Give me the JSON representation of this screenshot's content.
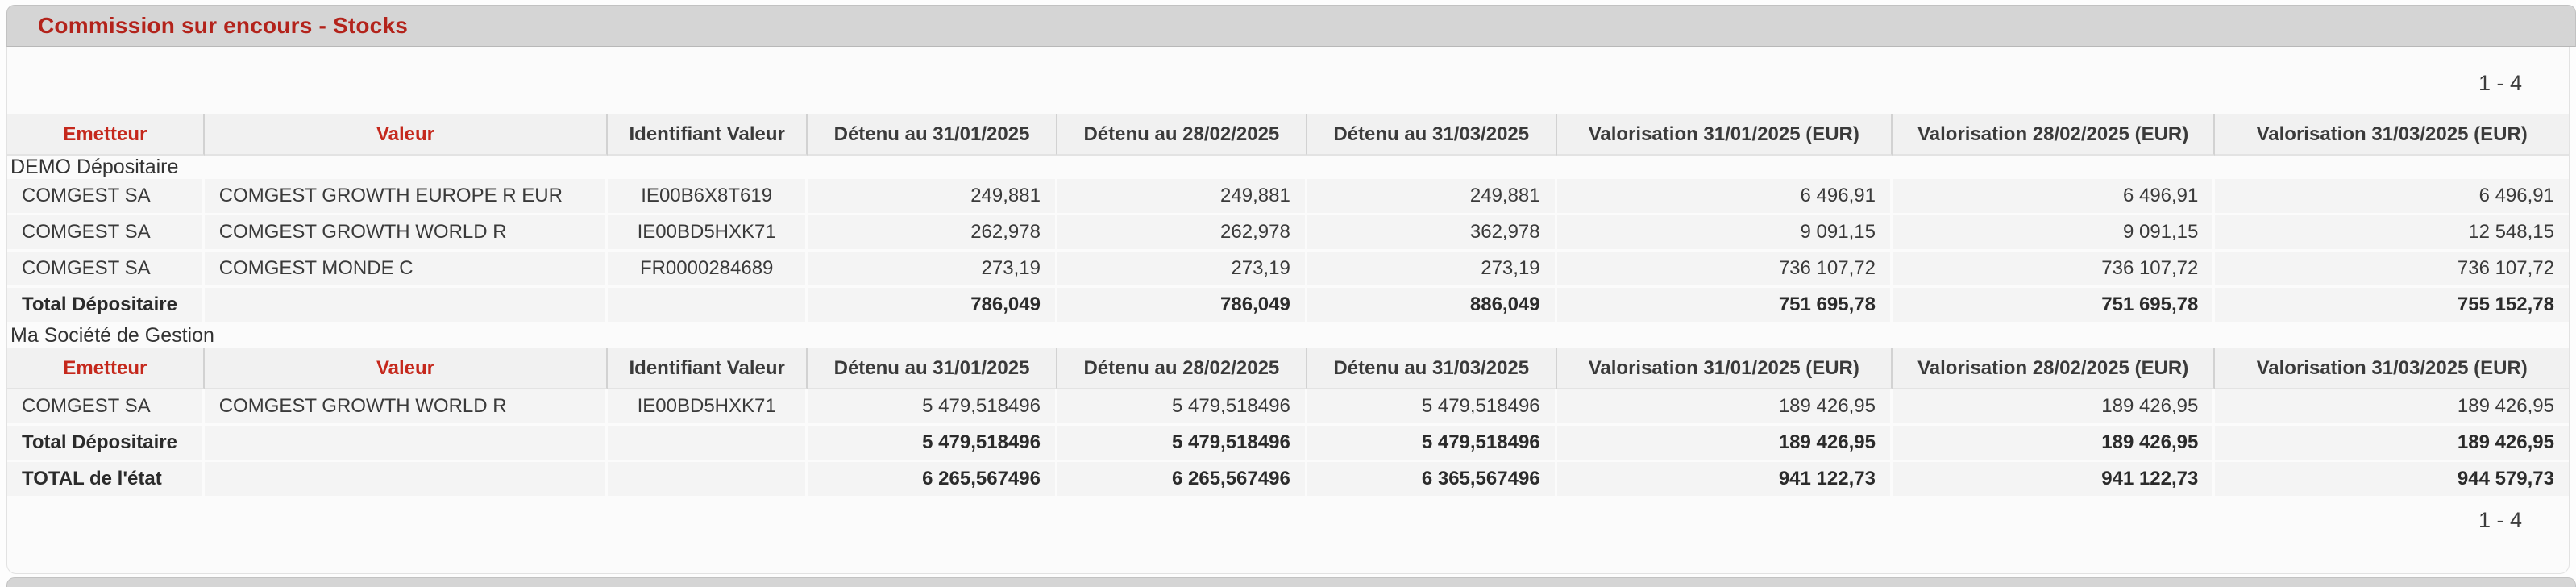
{
  "section": {
    "title": "Commission sur encours - Stocks",
    "pagination_top": "1 - 4",
    "pagination_bottom": "1 - 4"
  },
  "table": {
    "columns": [
      "Emetteur",
      "Valeur",
      "Identifiant Valeur",
      "Détenu au 31/01/2025",
      "Détenu au 28/02/2025",
      "Détenu au 31/03/2025",
      "Valorisation 31/01/2025 (EUR)",
      "Valorisation 28/02/2025 (EUR)",
      "Valorisation 31/03/2025 (EUR)"
    ],
    "groups": [
      {
        "label": "DEMO Dépositaire",
        "header_after_label": false,
        "rows": [
          {
            "cells": [
              "COMGEST SA",
              "COMGEST GROWTH EUROPE R EUR",
              "IE00B6X8T619",
              "249,881",
              "249,881",
              "249,881",
              "6 496,91",
              "6 496,91",
              "6 496,91"
            ]
          },
          {
            "cells": [
              "COMGEST SA",
              "COMGEST GROWTH WORLD R",
              "IE00BD5HXK71",
              "262,978",
              "262,978",
              "362,978",
              "9 091,15",
              "9 091,15",
              "12 548,15"
            ]
          },
          {
            "cells": [
              "COMGEST SA",
              "COMGEST MONDE C",
              "FR0000284689",
              "273,19",
              "273,19",
              "273,19",
              "736 107,72",
              "736 107,72",
              "736 107,72"
            ]
          }
        ],
        "total": {
          "cells": [
            "Total Dépositaire",
            "",
            "",
            "786,049",
            "786,049",
            "886,049",
            "751 695,78",
            "751 695,78",
            "755 152,78"
          ]
        }
      },
      {
        "label": "Ma Société de Gestion",
        "header_after_label": true,
        "rows": [
          {
            "cells": [
              "COMGEST SA",
              "COMGEST GROWTH WORLD R",
              "IE00BD5HXK71",
              "5 479,518496",
              "5 479,518496",
              "5 479,518496",
              "189 426,95",
              "189 426,95",
              "189 426,95"
            ]
          }
        ],
        "total": {
          "cells": [
            "Total Dépositaire",
            "",
            "",
            "5 479,518496",
            "5 479,518496",
            "5 479,518496",
            "189 426,95",
            "189 426,95",
            "189 426,95"
          ]
        }
      }
    ],
    "grand_total": {
      "cells": [
        "TOTAL de l'état",
        "",
        "",
        "6 265,567496",
        "6 265,567496",
        "6 365,567496",
        "941 122,73",
        "941 122,73",
        "944 579,73"
      ]
    }
  },
  "colors": {
    "title_red": "#b3231b",
    "header_red": "#c5281c",
    "bar_bg": "#d5d5d5",
    "panel_bg": "#fbfbfb"
  }
}
